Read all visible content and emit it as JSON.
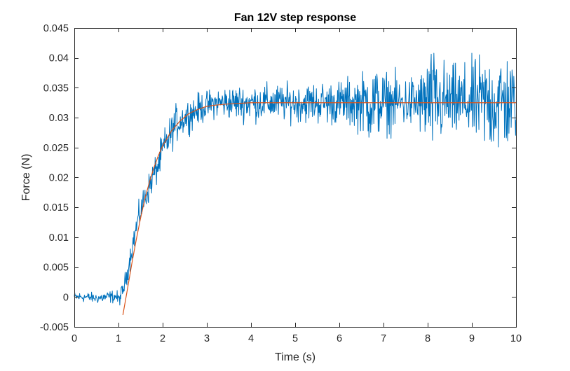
{
  "chart_data": {
    "type": "line",
    "title": "Fan 12V step response",
    "xlabel": "Time (s)",
    "ylabel": "Force (N)",
    "xlim": [
      0,
      10
    ],
    "ylim": [
      -0.005,
      0.045
    ],
    "xticks": [
      0,
      1,
      2,
      3,
      4,
      5,
      6,
      7,
      8,
      9,
      10
    ],
    "xtick_labels": [
      "0",
      "1",
      "2",
      "3",
      "4",
      "5",
      "6",
      "7",
      "8",
      "9",
      "10"
    ],
    "yticks": [
      -0.005,
      0,
      0.005,
      0.01,
      0.015,
      0.02,
      0.025,
      0.03,
      0.035,
      0.04,
      0.045
    ],
    "ytick_labels": [
      "-0.005",
      "0",
      "0.005",
      "0.01",
      "0.015",
      "0.02",
      "0.025",
      "0.03",
      "0.035",
      "0.04",
      "0.045"
    ],
    "grid": false,
    "box": true,
    "series": [
      {
        "color": "#0072BD",
        "x": [
          0.0,
          0.25,
          0.5,
          0.75,
          0.95,
          1.0,
          1.1,
          1.2,
          1.3,
          1.4,
          1.5,
          1.6,
          1.7,
          1.8,
          1.9,
          2.0,
          2.1,
          2.2,
          2.3,
          2.5,
          2.7,
          3.0,
          3.2,
          3.5,
          4.0,
          4.5,
          5.0,
          5.5,
          6.0,
          6.5,
          6.7,
          7.0,
          7.5,
          7.9,
          8.0,
          8.5,
          9.0,
          9.4,
          9.7,
          10.0
        ],
        "y": [
          0.0,
          0.0,
          -0.0002,
          0.0,
          0.0001,
          -0.0005,
          0.001,
          0.004,
          0.008,
          0.0115,
          0.0145,
          0.0165,
          0.0185,
          0.0205,
          0.022,
          0.0245,
          0.026,
          0.0275,
          0.029,
          0.03,
          0.031,
          0.032,
          0.0325,
          0.0325,
          0.0325,
          0.0325,
          0.0325,
          0.0325,
          0.0325,
          0.0325,
          0.0325,
          0.0325,
          0.0325,
          0.0325,
          0.0325,
          0.0325,
          0.0325,
          0.0325,
          0.0325,
          0.0325
        ],
        "noise_amplitude": [
          0.0007,
          0.0007,
          0.0007,
          0.0008,
          0.0009,
          0.001,
          0.0012,
          0.0014,
          0.0016,
          0.0018,
          0.002,
          0.002,
          0.002,
          0.0022,
          0.0022,
          0.0025,
          0.0025,
          0.0025,
          0.0025,
          0.0022,
          0.0022,
          0.002,
          0.002,
          0.0022,
          0.0025,
          0.0025,
          0.0025,
          0.0028,
          0.003,
          0.0038,
          0.0055,
          0.0042,
          0.0035,
          0.0045,
          0.0075,
          0.0048,
          0.0055,
          0.0068,
          0.0075,
          0.005
        ]
      },
      {
        "color": "#D95319",
        "x": [
          1.1,
          1.2,
          1.3,
          1.4,
          1.5,
          1.6,
          1.7,
          1.8,
          1.9,
          2.0,
          2.2,
          2.4,
          2.6,
          2.8,
          3.0,
          3.2,
          3.5,
          4.0,
          5.0,
          6.0,
          7.0,
          8.0,
          9.0,
          10.0
        ],
        "y": [
          -0.003,
          0.0012,
          0.0055,
          0.0095,
          0.0132,
          0.0165,
          0.0192,
          0.0216,
          0.0236,
          0.0253,
          0.0278,
          0.0295,
          0.0307,
          0.0314,
          0.0319,
          0.0321,
          0.0323,
          0.0325,
          0.0325,
          0.0325,
          0.0325,
          0.0325,
          0.0325,
          0.0325
        ]
      }
    ]
  }
}
